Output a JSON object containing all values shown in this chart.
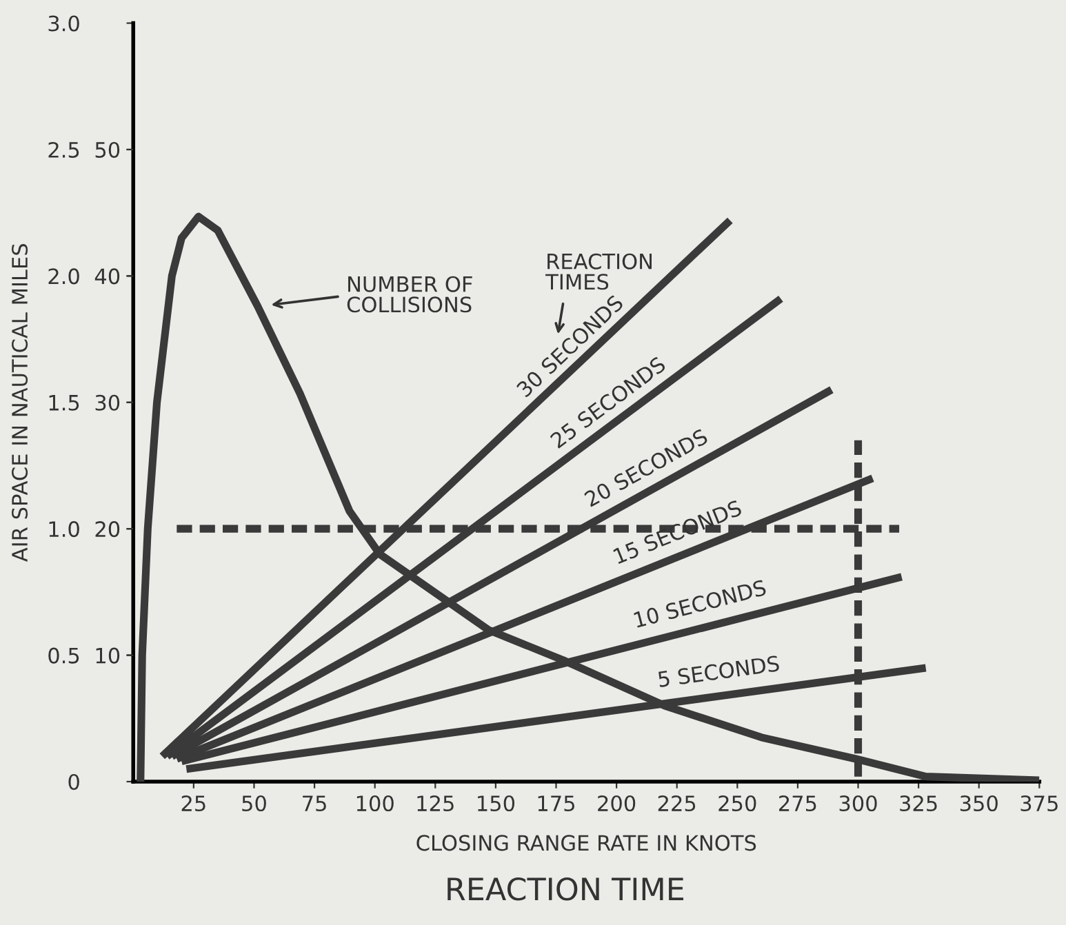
{
  "chart_data": {
    "type": "line",
    "title": "REACTION TIME",
    "xlabel": "CLOSING RANGE RATE IN KNOTS",
    "ylabel": "AIR SPACE IN NAUTICAL MILES",
    "xlim": [
      0,
      375
    ],
    "xticks": [
      25,
      50,
      75,
      100,
      125,
      150,
      175,
      200,
      225,
      250,
      275,
      300,
      325,
      350,
      375
    ],
    "ylim": [
      0,
      3.0
    ],
    "yticks": [
      0,
      {
        "value": 0.5,
        "label": "0.5"
      },
      {
        "value": 1.0,
        "label": "1.0"
      },
      {
        "value": 1.5,
        "label": "1.5"
      },
      {
        "value": 2.0,
        "label": "2.0"
      },
      {
        "value": 2.5,
        "label": "2.5"
      },
      {
        "value": 3.0,
        "label": "3.0"
      }
    ],
    "y2lim": [
      0,
      60
    ],
    "y2ticks": [
      10,
      20,
      30,
      40,
      50
    ],
    "line_style": "solid",
    "marker": "none",
    "series": [
      {
        "name": "30 SECONDS",
        "color": "#3a3a3a",
        "x": [
          12,
          247
        ],
        "values": [
          0.1,
          2.22
        ]
      },
      {
        "name": "25 SECONDS",
        "color": "#3a3a3a",
        "x": [
          14,
          268
        ],
        "values": [
          0.1,
          1.91
        ]
      },
      {
        "name": "20 SECONDS",
        "color": "#3a3a3a",
        "x": [
          16,
          289
        ],
        "values": [
          0.1,
          1.55
        ]
      },
      {
        "name": "15 SECONDS",
        "color": "#3a3a3a",
        "x": [
          18,
          306
        ],
        "values": [
          0.09,
          1.2
        ]
      },
      {
        "name": "10 SECONDS",
        "color": "#3a3a3a",
        "x": [
          20,
          318
        ],
        "values": [
          0.08,
          0.81
        ]
      },
      {
        "name": "5 SECONDS",
        "color": "#3a3a3a",
        "x": [
          22,
          328
        ],
        "values": [
          0.05,
          0.45
        ]
      },
      {
        "color": "#3a3a3a",
        "axis": "y2",
        "x": [
          3,
          3.7,
          6,
          9.8,
          16,
          20,
          27,
          35,
          51.5,
          69,
          89.5,
          102,
          120,
          147,
          178,
          220,
          260,
          299,
          328,
          375
        ],
        "values": [
          0,
          10,
          20,
          30,
          40,
          43,
          44.7,
          43.6,
          37.6,
          30.7,
          21.4,
          18,
          15.6,
          12,
          9.6,
          6,
          3.5,
          1.8,
          0.4,
          0.1
        ]
      },
      {
        "color": "#3a3a3a",
        "line_style": "dashed",
        "x": [
          18,
          317
        ],
        "values": [
          1.0,
          1.0
        ]
      },
      {
        "color": "#3a3a3a",
        "line_style": "dashed",
        "x": [
          300,
          300
        ],
        "values": [
          0.02,
          1.35
        ]
      }
    ],
    "annotations": [
      "NUMBER OF\nCOLLISIONS",
      "REACTION\nTIMES"
    ]
  }
}
